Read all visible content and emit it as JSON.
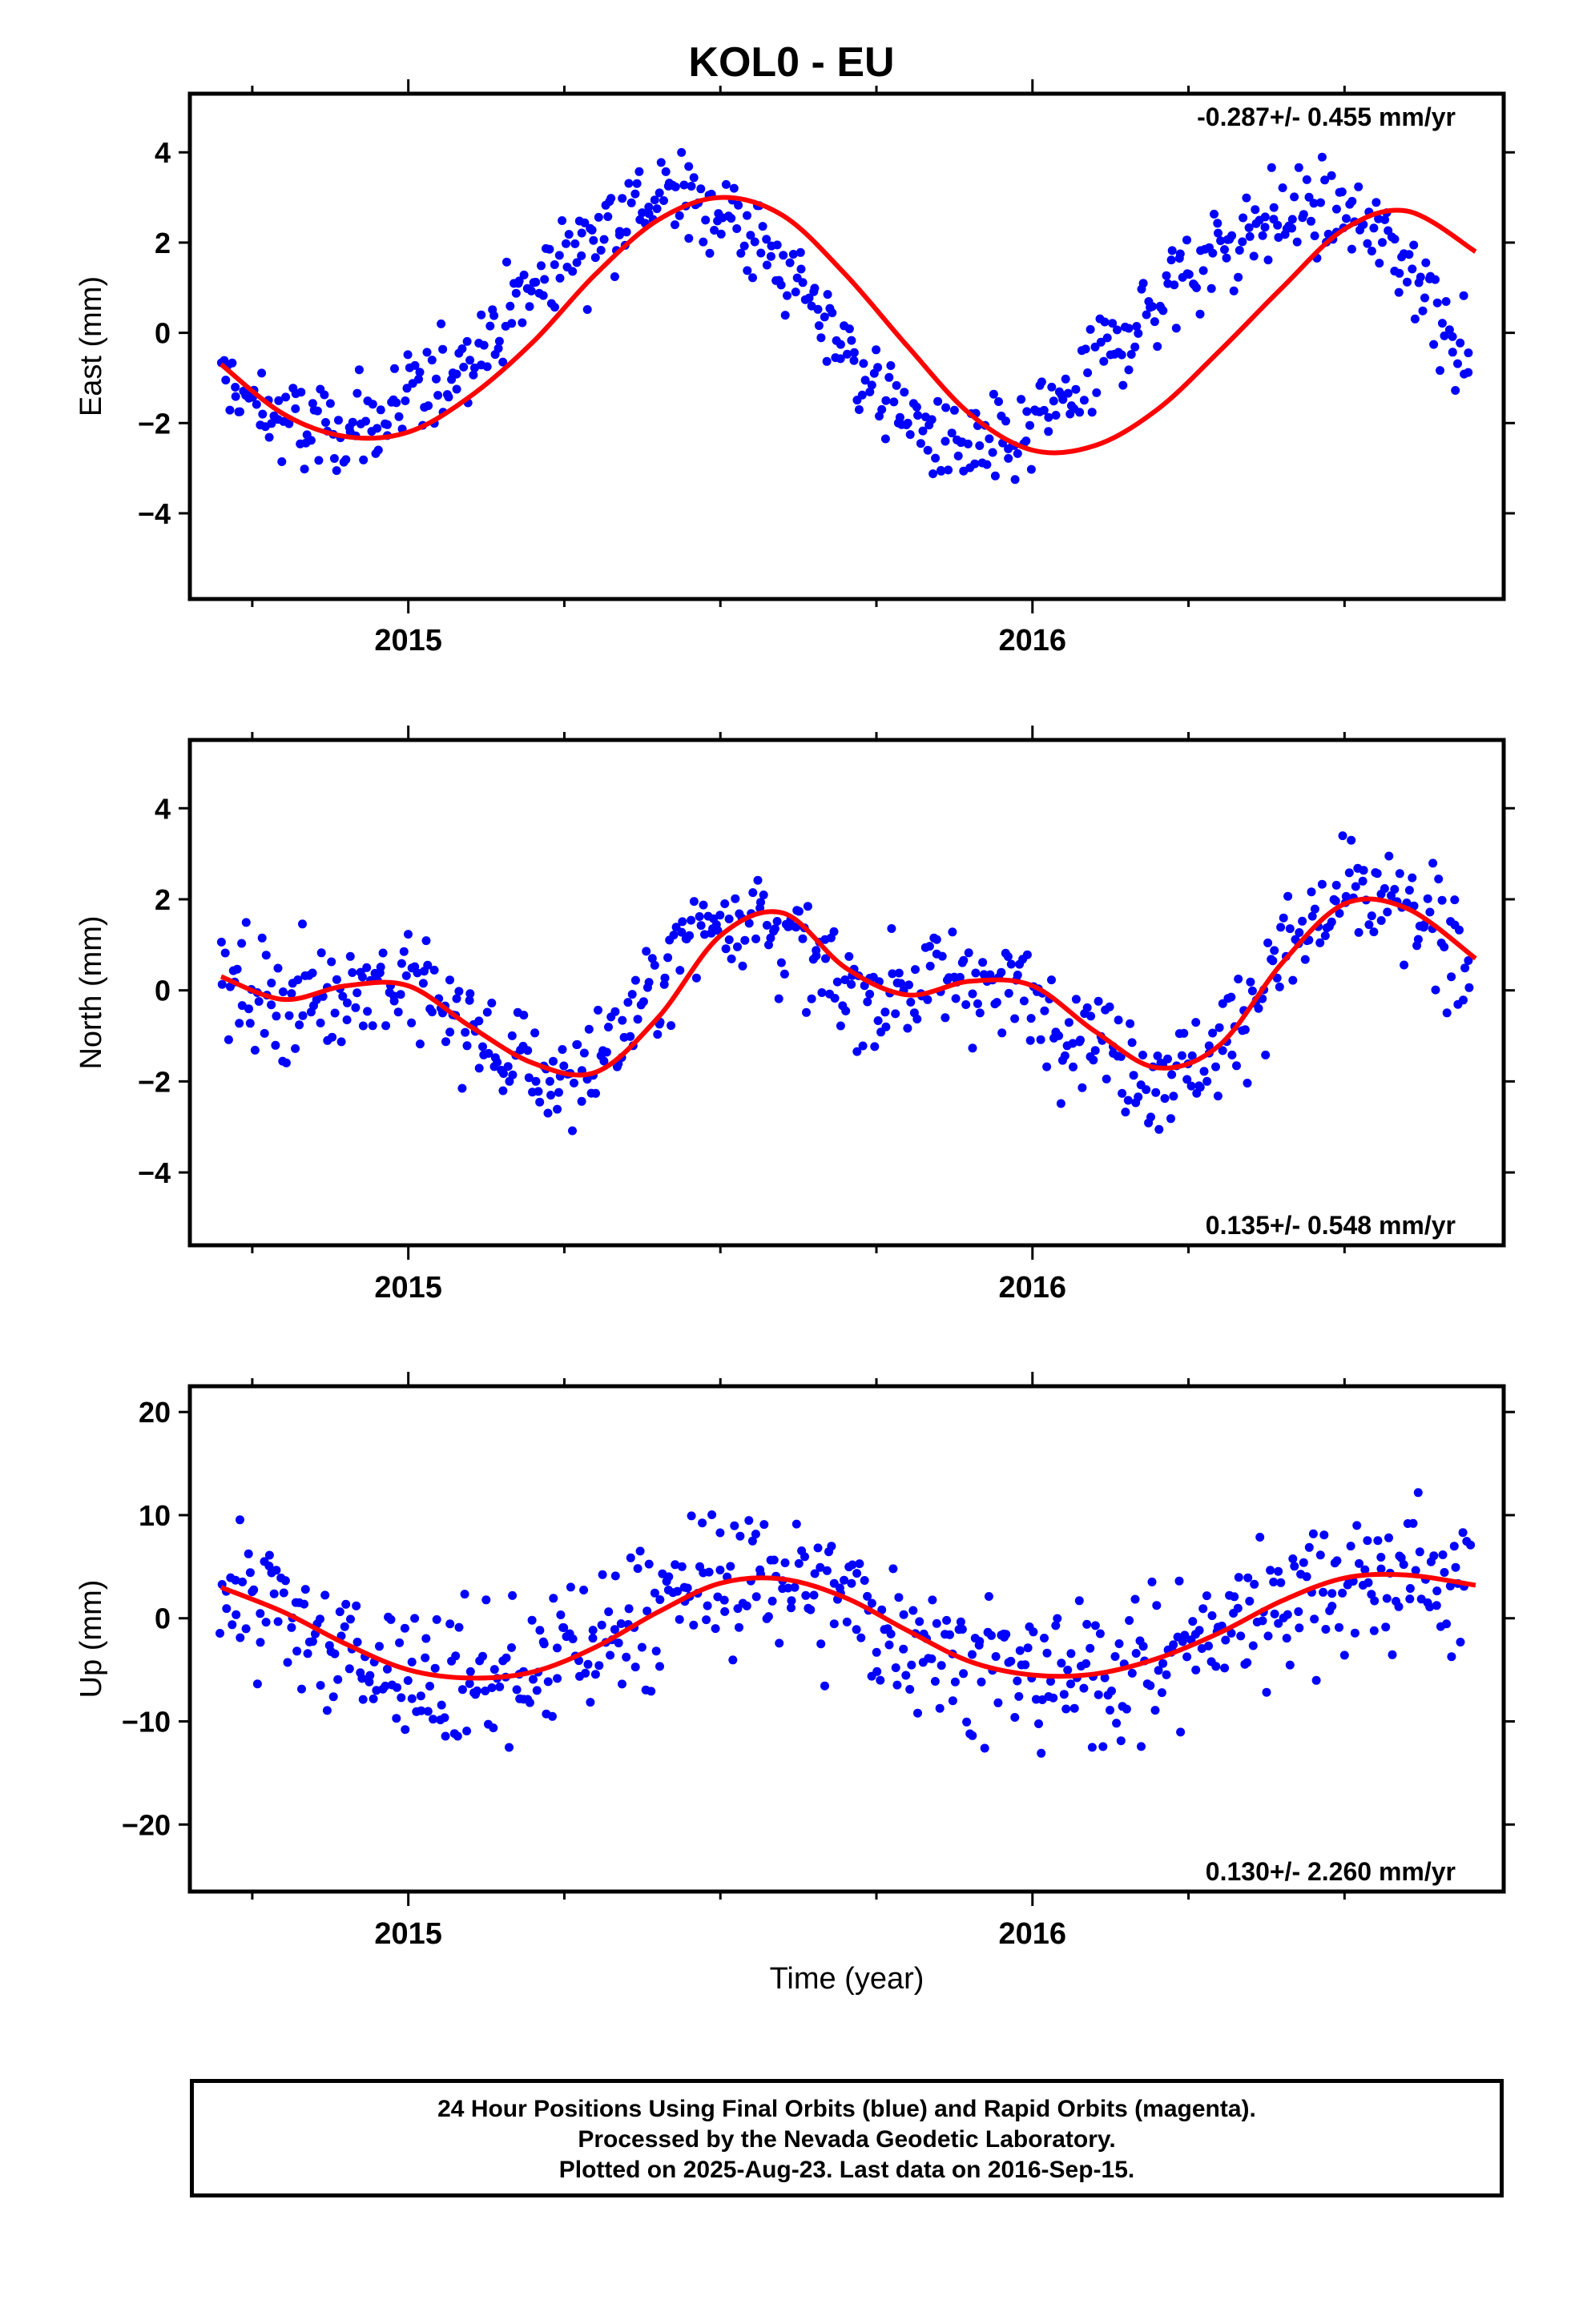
{
  "title": "KOL0 - EU",
  "colors": {
    "points": "#0000ff",
    "fit": "#ff0000",
    "frame": "#000000"
  },
  "footer": {
    "line1": "24 Hour Positions Using Final Orbits (blue) and Rapid Orbits (magenta).",
    "line2": "Processed by the Nevada Geodetic Laboratory.",
    "line3": "Plotted on 2025-Aug-23. Last data on 2016-Sep-15."
  },
  "chart_data": [
    {
      "type": "scatter",
      "ylabel": "East (mm)",
      "xlabel": "",
      "rate_label": "-0.287+/- 0.455 mm/yr",
      "rate_position": "top-right",
      "xlim": [
        2014.65,
        2016.755
      ],
      "ylim": [
        -5.9,
        5.3
      ],
      "xticks": [
        2015,
        2016
      ],
      "yticks": [
        -4,
        -2,
        0,
        2,
        4
      ],
      "minor_xticks": [
        2014.75,
        2015.25,
        2015.5,
        2015.75,
        2016.25,
        2016.5
      ],
      "fit": {
        "x": [
          2014.7,
          2014.8,
          2014.9,
          2015.0,
          2015.1,
          2015.2,
          2015.3,
          2015.4,
          2015.5,
          2015.6,
          2015.7,
          2015.8,
          2015.9,
          2016.0,
          2016.1,
          2016.2,
          2016.3,
          2016.4,
          2016.5,
          2016.6,
          2016.71
        ],
        "y": [
          -0.7,
          -1.8,
          -2.3,
          -2.2,
          -1.4,
          -0.2,
          1.3,
          2.5,
          3.0,
          2.6,
          1.3,
          -0.3,
          -1.8,
          -2.6,
          -2.5,
          -1.7,
          -0.4,
          1.0,
          2.3,
          2.7,
          1.8
        ]
      },
      "points_series": {
        "name": "",
        "x": [
          2014.7,
          2014.75,
          2014.8,
          2014.85,
          2014.9,
          2014.95,
          2015.0,
          2015.05,
          2015.1,
          2015.15,
          2015.2,
          2015.25,
          2015.3,
          2015.35,
          2015.4,
          2015.45,
          2015.5,
          2015.55,
          2015.6,
          2015.65,
          2015.7,
          2015.75,
          2015.8,
          2015.85,
          2015.9,
          2015.95,
          2016.0,
          2016.05,
          2016.1,
          2016.15,
          2016.2,
          2016.25,
          2016.3,
          2016.35,
          2016.4,
          2016.45,
          2016.5,
          2016.55,
          2016.6,
          2016.65,
          2016.7
        ],
        "y": [
          -1.0,
          -1.6,
          -2.0,
          -2.2,
          -2.1,
          -2.0,
          -1.6,
          -1.0,
          -0.4,
          0.3,
          1.0,
          1.7,
          2.3,
          2.7,
          3.0,
          3.0,
          2.7,
          2.2,
          1.4,
          0.6,
          -0.3,
          -1.2,
          -1.9,
          -2.4,
          -2.6,
          -2.6,
          -2.2,
          -1.5,
          -0.8,
          0.0,
          0.7,
          1.4,
          1.9,
          2.3,
          2.6,
          2.7,
          2.6,
          2.2,
          1.6,
          0.6,
          -0.6
        ]
      }
    },
    {
      "type": "scatter",
      "ylabel": "North (mm)",
      "xlabel": "",
      "rate_label": "0.135+/- 0.548 mm/yr",
      "rate_position": "bottom-right",
      "xlim": [
        2014.65,
        2016.755
      ],
      "ylim": [
        -5.6,
        5.5
      ],
      "xticks": [
        2015,
        2016
      ],
      "yticks": [
        -4,
        -2,
        0,
        2,
        4
      ],
      "minor_xticks": [
        2014.75,
        2015.25,
        2015.5,
        2015.75,
        2016.25,
        2016.5
      ],
      "fit": {
        "x": [
          2014.7,
          2014.8,
          2014.9,
          2015.0,
          2015.1,
          2015.2,
          2015.3,
          2015.4,
          2015.5,
          2015.6,
          2015.7,
          2015.8,
          2015.9,
          2016.0,
          2016.1,
          2016.2,
          2016.3,
          2016.4,
          2016.5,
          2016.6,
          2016.71
        ],
        "y": [
          0.3,
          -0.2,
          0.1,
          0.1,
          -0.8,
          -1.6,
          -1.8,
          -0.6,
          1.2,
          1.7,
          0.5,
          -0.1,
          0.2,
          0.1,
          -0.9,
          -1.7,
          -1.2,
          0.6,
          1.9,
          1.8,
          0.7
        ]
      },
      "points_series": {
        "name": "",
        "x": [
          2014.7,
          2014.75,
          2014.8,
          2014.85,
          2014.9,
          2014.95,
          2015.0,
          2015.05,
          2015.1,
          2015.15,
          2015.2,
          2015.25,
          2015.3,
          2015.35,
          2015.4,
          2015.45,
          2015.5,
          2015.55,
          2015.6,
          2015.65,
          2015.7,
          2015.75,
          2015.8,
          2015.85,
          2015.9,
          2015.95,
          2016.0,
          2016.05,
          2016.1,
          2016.15,
          2016.2,
          2016.25,
          2016.3,
          2016.35,
          2016.4,
          2016.45,
          2016.5,
          2016.55,
          2016.6,
          2016.65,
          2016.7
        ],
        "y": [
          0.2,
          0.0,
          -0.2,
          -0.1,
          0.1,
          0.2,
          0.1,
          -0.3,
          -0.9,
          -1.4,
          -1.8,
          -1.9,
          -1.6,
          -0.8,
          0.2,
          1.1,
          1.7,
          1.8,
          1.3,
          0.6,
          0.0,
          -0.1,
          0.1,
          0.3,
          0.3,
          0.1,
          -0.2,
          -0.6,
          -1.1,
          -1.5,
          -1.8,
          -1.7,
          -1.2,
          -0.3,
          0.7,
          1.5,
          2.0,
          2.0,
          1.7,
          1.2,
          0.7
        ]
      }
    },
    {
      "type": "scatter",
      "ylabel": "Up (mm)",
      "xlabel": "Time (year)",
      "rate_label": "0.130+/- 2.260 mm/yr",
      "rate_position": "bottom-right",
      "xlim": [
        2014.65,
        2016.755
      ],
      "ylim": [
        -26.5,
        22.5
      ],
      "xticks": [
        2015,
        2016
      ],
      "yticks": [
        -20,
        -10,
        0,
        10,
        20
      ],
      "minor_xticks": [
        2014.75,
        2015.25,
        2015.5,
        2015.75,
        2016.25,
        2016.5
      ],
      "fit": {
        "x": [
          2014.7,
          2014.8,
          2014.9,
          2015.0,
          2015.1,
          2015.2,
          2015.3,
          2015.4,
          2015.5,
          2015.6,
          2015.7,
          2015.8,
          2015.9,
          2016.0,
          2016.1,
          2016.2,
          2016.3,
          2016.4,
          2016.5,
          2016.6,
          2016.71
        ],
        "y": [
          3.0,
          0.6,
          -2.5,
          -5.0,
          -5.8,
          -5.2,
          -2.8,
          0.6,
          3.4,
          3.8,
          2.0,
          -1.2,
          -4.2,
          -5.5,
          -5.4,
          -3.9,
          -1.4,
          1.7,
          3.9,
          4.2,
          3.2
        ]
      },
      "points_series": {
        "name": "",
        "x": [
          2014.7,
          2014.75,
          2014.8,
          2014.85,
          2014.9,
          2014.95,
          2015.0,
          2015.05,
          2015.1,
          2015.15,
          2015.2,
          2015.25,
          2015.3,
          2015.35,
          2015.4,
          2015.45,
          2015.5,
          2015.55,
          2015.6,
          2015.65,
          2015.7,
          2015.75,
          2015.8,
          2015.85,
          2015.9,
          2015.95,
          2016.0,
          2016.05,
          2016.1,
          2016.15,
          2016.2,
          2016.25,
          2016.3,
          2016.35,
          2016.4,
          2016.45,
          2016.5,
          2016.55,
          2016.6,
          2016.65,
          2016.7
        ],
        "y": [
          3,
          2,
          0,
          -2,
          -3,
          -4,
          -5,
          -6,
          -6,
          -6,
          -5,
          -4,
          -2,
          0,
          1,
          3,
          4,
          4,
          4,
          3,
          2,
          0,
          -1,
          -3,
          -4,
          -5,
          -6,
          -6,
          -5,
          -5,
          -4,
          -3,
          -1,
          1,
          2,
          3,
          4,
          4,
          4,
          4,
          3
        ]
      }
    }
  ]
}
